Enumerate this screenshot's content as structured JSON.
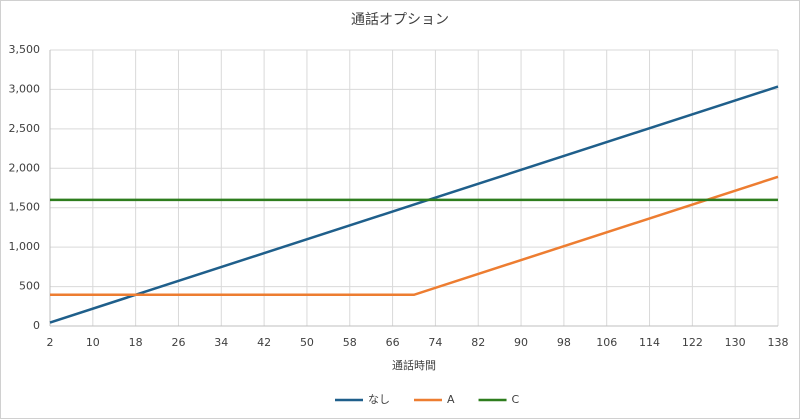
{
  "chart_data": {
    "type": "line",
    "title": "通話オプション",
    "x_label": "通話時間",
    "x": [
      2,
      70,
      138
    ],
    "series": [
      {
        "name": "なし",
        "color": "#1f5f8b",
        "values": [
          44,
          1540,
          3036
        ]
      },
      {
        "name": "A",
        "color": "#ed7d31",
        "values": [
          396,
          396,
          1892
        ]
      },
      {
        "name": "C",
        "color": "#2e7d1e",
        "values": [
          1600,
          1600,
          1600
        ]
      }
    ],
    "xlim": [
      2,
      138
    ],
    "xticks": [
      2,
      10,
      18,
      26,
      34,
      42,
      50,
      58,
      66,
      74,
      82,
      90,
      98,
      106,
      114,
      122,
      130,
      138
    ],
    "ylim": [
      0,
      3500
    ],
    "yticks": [
      0,
      500,
      {
        "value": 1000,
        "label": "1,000"
      },
      {
        "value": 1500,
        "label": "1,500"
      },
      {
        "value": 2000,
        "label": "2,000"
      },
      {
        "value": 2500,
        "label": "2,500"
      },
      {
        "value": 3000,
        "label": "3,000"
      },
      {
        "value": 3500,
        "label": "3,500"
      }
    ],
    "grid": true,
    "legend": "bottom"
  }
}
